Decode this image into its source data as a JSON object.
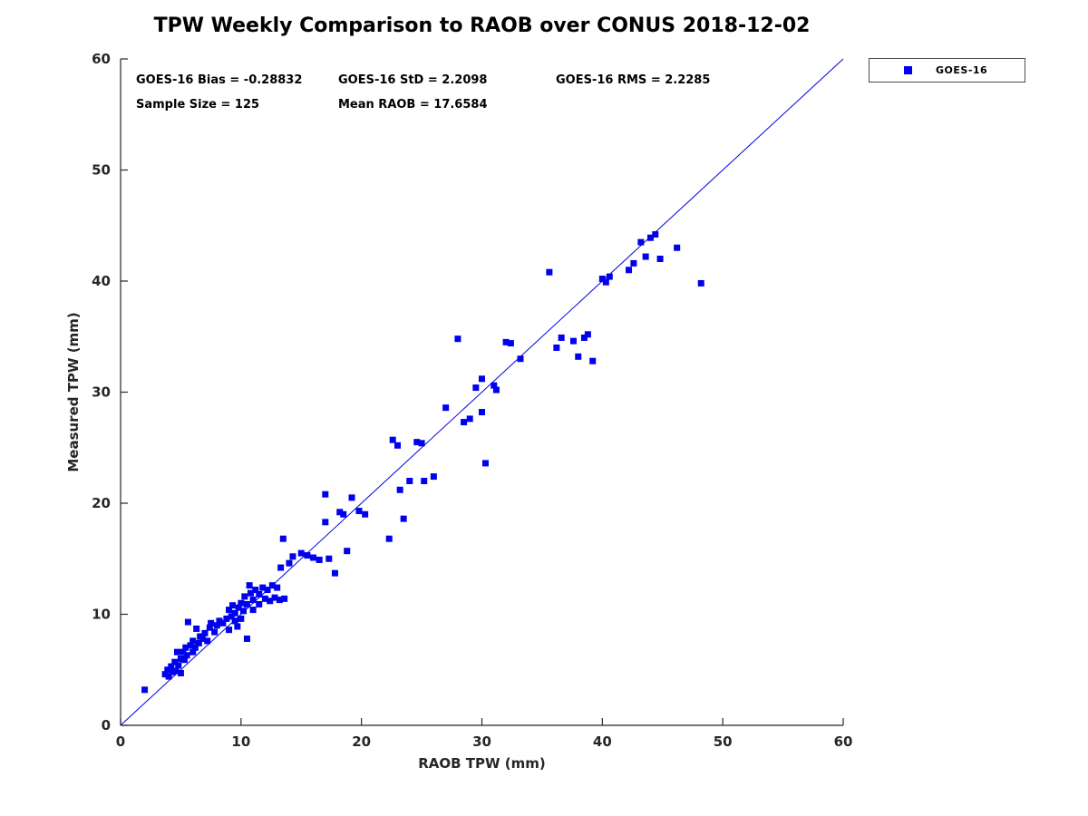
{
  "chart_data": {
    "type": "scatter",
    "title": "TPW Weekly Comparison to RAOB over CONUS 2018-12-02",
    "xlabel": "RAOB TPW (mm)",
    "ylabel": "Measured TPW (mm)",
    "xlim": [
      0,
      60
    ],
    "ylim": [
      0,
      60
    ],
    "xticks": [
      0,
      10,
      20,
      30,
      40,
      50,
      60
    ],
    "yticks": [
      0,
      10,
      20,
      30,
      40,
      50,
      60
    ],
    "grid": false,
    "legend_position": "top-right-outside",
    "colors": {
      "marker": "#0000ee",
      "reference_line": "#0000dd",
      "axis": "#262626",
      "text": "#000000"
    },
    "reference_line": {
      "from": [
        0,
        0
      ],
      "to": [
        60,
        60
      ]
    },
    "series": [
      {
        "name": "GOES-16",
        "marker": "square",
        "points": [
          [
            2.0,
            3.2
          ],
          [
            3.7,
            4.6
          ],
          [
            3.9,
            5.0
          ],
          [
            4.0,
            4.4
          ],
          [
            4.2,
            5.3
          ],
          [
            4.3,
            4.8
          ],
          [
            4.5,
            5.7
          ],
          [
            4.6,
            4.9
          ],
          [
            4.7,
            6.6
          ],
          [
            4.8,
            5.4
          ],
          [
            5.0,
            4.7
          ],
          [
            5.0,
            6.0
          ],
          [
            5.2,
            6.6
          ],
          [
            5.3,
            5.9
          ],
          [
            5.4,
            7.0
          ],
          [
            5.5,
            6.3
          ],
          [
            5.6,
            9.3
          ],
          [
            5.8,
            7.2
          ],
          [
            6.0,
            6.6
          ],
          [
            6.0,
            7.6
          ],
          [
            6.2,
            7.0
          ],
          [
            6.3,
            8.7
          ],
          [
            6.5,
            7.4
          ],
          [
            6.6,
            8.0
          ],
          [
            6.8,
            7.8
          ],
          [
            7.0,
            8.3
          ],
          [
            7.2,
            7.6
          ],
          [
            7.4,
            8.8
          ],
          [
            7.5,
            9.2
          ],
          [
            7.8,
            8.4
          ],
          [
            8.0,
            9.0
          ],
          [
            8.2,
            9.4
          ],
          [
            8.5,
            9.2
          ],
          [
            8.8,
            9.6
          ],
          [
            9.0,
            8.6
          ],
          [
            9.0,
            10.4
          ],
          [
            9.2,
            9.8
          ],
          [
            9.3,
            10.8
          ],
          [
            9.5,
            9.4
          ],
          [
            9.5,
            10.1
          ],
          [
            9.7,
            8.9
          ],
          [
            9.8,
            10.6
          ],
          [
            10.0,
            9.6
          ],
          [
            10.0,
            11.0
          ],
          [
            10.2,
            10.3
          ],
          [
            10.3,
            11.6
          ],
          [
            10.5,
            7.8
          ],
          [
            10.5,
            10.9
          ],
          [
            10.7,
            12.6
          ],
          [
            10.8,
            11.9
          ],
          [
            11.0,
            10.4
          ],
          [
            11.0,
            11.3
          ],
          [
            11.2,
            12.2
          ],
          [
            11.5,
            10.9
          ],
          [
            11.5,
            11.8
          ],
          [
            11.8,
            12.4
          ],
          [
            12.0,
            11.4
          ],
          [
            12.2,
            12.2
          ],
          [
            12.4,
            11.2
          ],
          [
            12.6,
            12.6
          ],
          [
            12.8,
            11.5
          ],
          [
            13.0,
            12.4
          ],
          [
            13.2,
            11.3
          ],
          [
            13.3,
            14.2
          ],
          [
            13.5,
            16.8
          ],
          [
            13.6,
            11.4
          ],
          [
            14.0,
            14.6
          ],
          [
            14.3,
            15.2
          ],
          [
            15.0,
            15.5
          ],
          [
            15.5,
            15.3
          ],
          [
            16.0,
            15.1
          ],
          [
            16.5,
            14.9
          ],
          [
            17.0,
            20.8
          ],
          [
            17.0,
            18.3
          ],
          [
            17.3,
            15.0
          ],
          [
            17.8,
            13.7
          ],
          [
            18.2,
            19.2
          ],
          [
            18.5,
            19.0
          ],
          [
            18.8,
            15.7
          ],
          [
            19.2,
            20.5
          ],
          [
            19.8,
            19.3
          ],
          [
            20.3,
            19.0
          ],
          [
            22.3,
            16.8
          ],
          [
            22.6,
            25.7
          ],
          [
            23.0,
            25.2
          ],
          [
            23.2,
            21.2
          ],
          [
            23.5,
            18.6
          ],
          [
            24.0,
            22.0
          ],
          [
            24.6,
            25.5
          ],
          [
            25.0,
            25.4
          ],
          [
            25.2,
            22.0
          ],
          [
            26.0,
            22.4
          ],
          [
            27.0,
            28.6
          ],
          [
            28.0,
            34.8
          ],
          [
            28.5,
            27.3
          ],
          [
            29.0,
            27.6
          ],
          [
            29.5,
            30.4
          ],
          [
            30.0,
            31.2
          ],
          [
            30.0,
            28.2
          ],
          [
            30.3,
            23.6
          ],
          [
            31.0,
            30.6
          ],
          [
            31.2,
            30.2
          ],
          [
            32.0,
            34.5
          ],
          [
            32.4,
            34.4
          ],
          [
            33.2,
            33.0
          ],
          [
            35.6,
            40.8
          ],
          [
            36.2,
            34.0
          ],
          [
            36.6,
            34.9
          ],
          [
            37.6,
            34.6
          ],
          [
            38.0,
            33.2
          ],
          [
            38.5,
            34.9
          ],
          [
            38.8,
            35.2
          ],
          [
            39.2,
            32.8
          ],
          [
            40.0,
            40.2
          ],
          [
            40.3,
            39.9
          ],
          [
            40.6,
            40.4
          ],
          [
            42.2,
            41.0
          ],
          [
            42.6,
            41.6
          ],
          [
            43.2,
            43.5
          ],
          [
            43.6,
            42.2
          ],
          [
            44.0,
            43.9
          ],
          [
            44.4,
            44.2
          ],
          [
            44.8,
            42.0
          ],
          [
            46.2,
            43.0
          ],
          [
            48.2,
            39.8
          ]
        ]
      }
    ],
    "annotations": {
      "bias": "GOES-16 Bias = -0.28832",
      "std": "GOES-16 StD = 2.2098",
      "rms": "GOES-16 RMS = 2.2285",
      "sample": "Sample Size = 125",
      "mean_raob": "Mean RAOB = 17.6584"
    }
  }
}
